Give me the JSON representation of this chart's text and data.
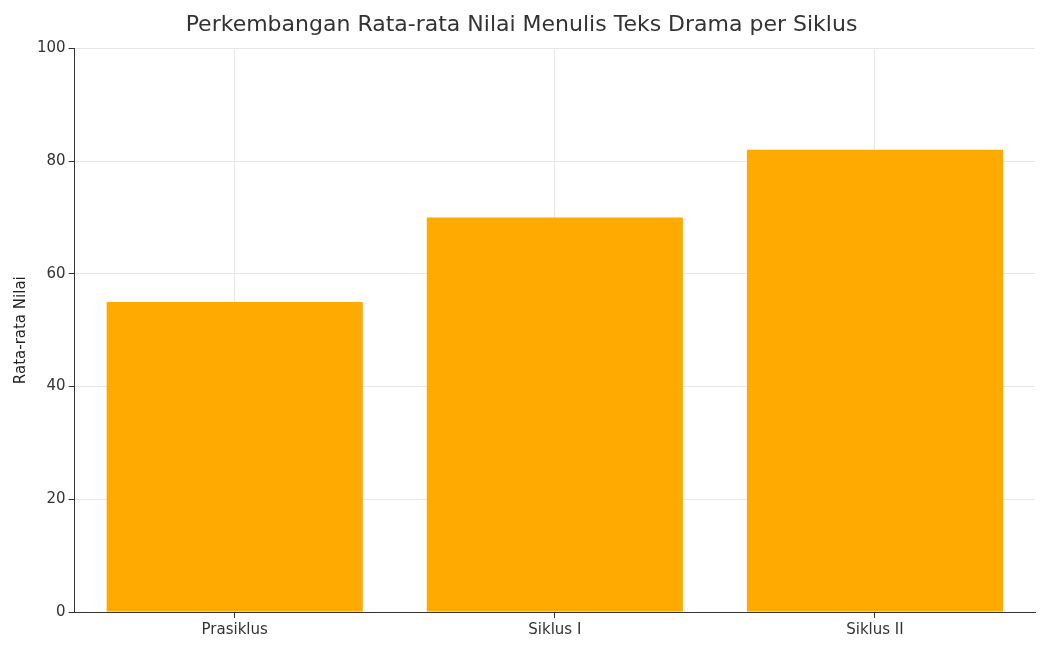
{
  "chart_data": {
    "type": "bar",
    "title": "Perkembangan Rata-rata Nilai Menulis Teks Drama per Siklus",
    "ylabel": "Rata-rata Nilai",
    "categories": [
      "Prasiklus",
      "Siklus I",
      "Siklus II"
    ],
    "values": [
      55,
      70,
      82
    ],
    "color": "#ffaa00",
    "ylim": [
      0,
      100
    ],
    "yticks": [
      0,
      20,
      40,
      60,
      80,
      100
    ],
    "grid": true
  }
}
